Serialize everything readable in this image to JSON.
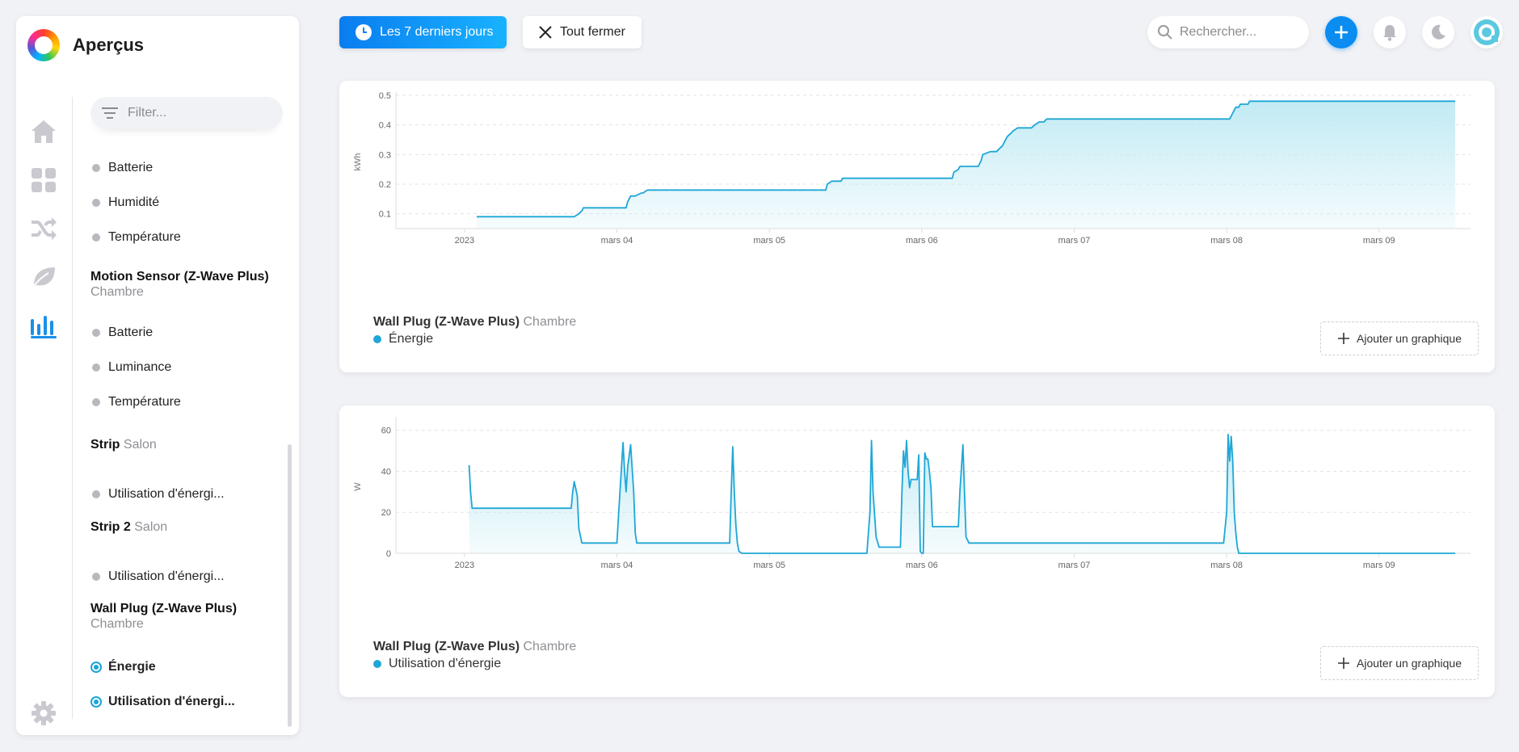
{
  "app": {
    "title": "Aperçus"
  },
  "sidebar": {
    "filter_placeholder": "Filter...",
    "groups": [
      {
        "leaves": [
          "Batterie",
          "Humidité",
          "Température"
        ]
      },
      {
        "title": "Motion Sensor (Z-Wave Plus)",
        "room": "Chambre",
        "leaves": [
          "Batterie",
          "Luminance",
          "Température"
        ]
      },
      {
        "title": "Strip",
        "room": "Salon",
        "leaves": [
          "Utilisation d'énergi..."
        ]
      },
      {
        "title": "Strip 2",
        "room": "Salon",
        "leaves": [
          "Utilisation d'énergi..."
        ]
      },
      {
        "title": "Wall Plug (Z-Wave Plus)",
        "room": "Chambre",
        "leaves": [
          "Énergie",
          "Utilisation d'énergi..."
        ]
      }
    ]
  },
  "topbar": {
    "range_label": "Les 7 derniers jours",
    "close_all_label": "Tout fermer",
    "search_placeholder": "Rechercher..."
  },
  "colors": {
    "accent": "#0a8cf0",
    "series": "#1ea7d6",
    "fill": "#bfe9f3"
  },
  "cards": [
    {
      "device": "Wall Plug (Z-Wave Plus)",
      "room": "Chambre",
      "series": "Énergie",
      "add_label": "Ajouter un graphique"
    },
    {
      "device": "Wall Plug (Z-Wave Plus)",
      "room": "Chambre",
      "series": "Utilisation d'énergie",
      "add_label": "Ajouter un graphique"
    }
  ],
  "chart_data": [
    {
      "type": "line",
      "ylabel": "kWh",
      "ylim": [
        0.05,
        0.5
      ],
      "yticks": [
        0.1,
        0.2,
        0.3,
        0.4,
        0.5
      ],
      "xlim": [
        -0.45,
        6.6
      ],
      "xticks": [
        0,
        1,
        2,
        3,
        4,
        5,
        6
      ],
      "xtick_labels": [
        "2023",
        "mars 04",
        "mars 05",
        "mars 06",
        "mars 07",
        "mars 08",
        "mars 09"
      ],
      "grid": true,
      "area": true,
      "series": [
        {
          "name": "Énergie",
          "x": [
            0.08,
            0.72,
            0.75,
            0.77,
            0.78,
            1.06,
            1.07,
            1.09,
            1.12,
            1.16,
            1.17,
            1.2,
            1.23,
            1.24,
            1.26,
            1.3,
            1.31,
            1.35,
            1.36,
            2.37,
            2.38,
            2.41,
            2.43,
            2.47,
            2.48,
            2.51,
            2.53,
            2.54,
            2.56,
            3.2,
            3.21,
            3.24,
            3.25,
            3.27,
            3.29,
            3.33,
            3.34,
            3.37,
            3.39,
            3.4,
            3.45,
            3.47,
            3.49,
            3.53,
            3.54,
            3.56,
            3.58,
            3.6,
            3.63,
            3.65,
            3.68,
            3.72,
            3.74,
            3.77,
            3.8,
            3.82,
            3.84,
            3.89,
            3.9,
            3.91,
            3.95,
            4.0,
            5.0,
            5.02,
            5.04,
            5.05,
            5.06,
            5.08,
            5.09,
            5.11,
            5.14,
            5.15,
            5.17,
            6.5
          ],
          "y": [
            0.09,
            0.09,
            0.1,
            0.11,
            0.12,
            0.12,
            0.14,
            0.16,
            0.16,
            0.17,
            0.17,
            0.18,
            0.18,
            0.18,
            0.18,
            0.18,
            0.18,
            0.18,
            0.18,
            0.18,
            0.2,
            0.21,
            0.21,
            0.21,
            0.22,
            0.22,
            0.22,
            0.22,
            0.22,
            0.22,
            0.24,
            0.25,
            0.26,
            0.26,
            0.26,
            0.26,
            0.26,
            0.26,
            0.28,
            0.3,
            0.31,
            0.31,
            0.31,
            0.33,
            0.34,
            0.36,
            0.37,
            0.38,
            0.39,
            0.39,
            0.39,
            0.39,
            0.4,
            0.41,
            0.41,
            0.42,
            0.42,
            0.42,
            0.42,
            0.42,
            0.42,
            0.42,
            0.42,
            0.42,
            0.44,
            0.45,
            0.46,
            0.46,
            0.47,
            0.47,
            0.47,
            0.48,
            0.48,
            0.48
          ]
        }
      ]
    },
    {
      "type": "line",
      "ylabel": "W",
      "ylim": [
        0,
        65
      ],
      "yticks": [
        0,
        20,
        40,
        60
      ],
      "xlim": [
        -0.45,
        6.6
      ],
      "xticks": [
        0,
        1,
        2,
        3,
        4,
        5,
        6
      ],
      "xtick_labels": [
        "2023",
        "mars 04",
        "mars 05",
        "mars 06",
        "mars 07",
        "mars 08",
        "mars 09"
      ],
      "grid": true,
      "area": true,
      "series": [
        {
          "name": "Utilisation d'énergie",
          "x": [
            0.03,
            0.04,
            0.05,
            0.7,
            0.71,
            0.72,
            0.74,
            0.75,
            0.77,
            0.8,
            1.0,
            1.02,
            1.04,
            1.05,
            1.06,
            1.07,
            1.09,
            1.11,
            1.12,
            1.13,
            1.15,
            1.17,
            1.2,
            1.4,
            1.74,
            1.75,
            1.76,
            1.77,
            1.78,
            1.79,
            1.8,
            1.82,
            1.84,
            2.5,
            2.6,
            2.64,
            2.66,
            2.67,
            2.68,
            2.7,
            2.72,
            2.74,
            2.86,
            2.87,
            2.88,
            2.89,
            2.9,
            2.91,
            2.92,
            2.93,
            2.94,
            2.95,
            2.96,
            2.97,
            2.98,
            2.99,
            3.0,
            3.01,
            3.02,
            3.03,
            3.04,
            3.05,
            3.06,
            3.07,
            3.09,
            3.1,
            3.12,
            3.13,
            3.15,
            3.24,
            3.25,
            3.27,
            3.28,
            3.29,
            3.31,
            3.35,
            4.0,
            4.5,
            4.98,
            5.0,
            5.01,
            5.02,
            5.03,
            5.04,
            5.05,
            5.06,
            5.07,
            5.08,
            5.1,
            5.12,
            5.14,
            5.5,
            6.0,
            6.5
          ],
          "y": [
            43,
            30,
            22,
            22,
            30,
            35,
            28,
            12,
            5,
            5,
            5,
            30,
            54,
            40,
            30,
            42,
            53,
            30,
            10,
            5,
            5,
            5,
            5,
            5,
            5,
            30,
            52,
            30,
            14,
            5,
            1,
            0,
            0,
            0,
            0,
            0,
            20,
            55,
            30,
            8,
            3,
            3,
            3,
            30,
            50,
            42,
            55,
            40,
            32,
            36,
            36,
            36,
            36,
            36,
            48,
            1,
            0,
            0,
            49,
            46,
            46,
            40,
            32,
            13,
            13,
            13,
            13,
            13,
            13,
            13,
            30,
            53,
            30,
            8,
            5,
            5,
            5,
            5,
            5,
            20,
            58,
            45,
            57,
            45,
            20,
            10,
            3,
            0,
            0,
            0,
            0,
            0,
            0,
            0
          ]
        }
      ]
    }
  ]
}
